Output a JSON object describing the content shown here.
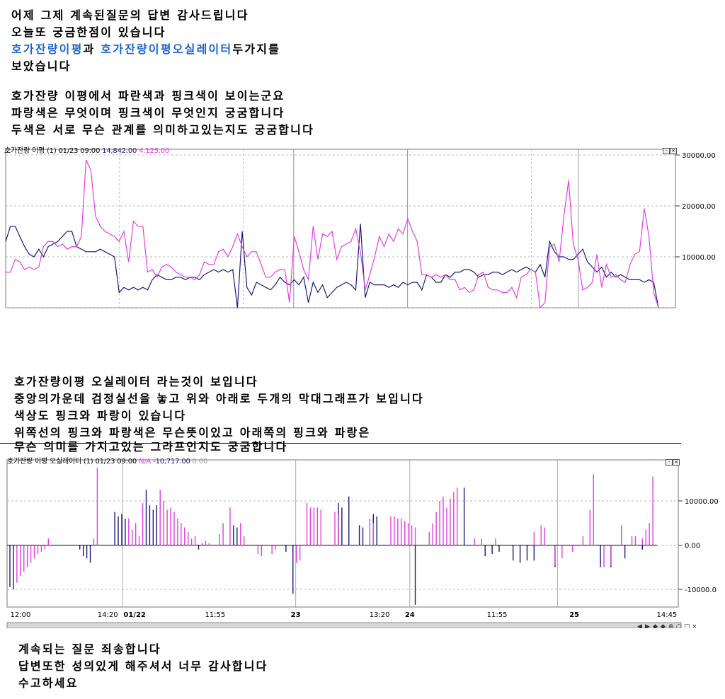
{
  "intro": {
    "line1": "어제 그제 계속된질문의 답변 감사드립니다",
    "line2": "오늘또 궁금한점이 있습니다",
    "line3_link1": "호가잔량이평",
    "line3_mid": "과 ",
    "line3_link2": "호가잔량이평오실레이터",
    "line3_end": "두가지를",
    "line4": "보았습니다",
    "q1": " 호가잔량 이평에서 파란색과 핑크색이 보이는군요",
    "q2": "파랑색은 무엇이며 핑크색이 무엇인지 궁굼합니다",
    "q3": "두색은 서로 무슨 관계를 의미하고있는지도 궁굼합니다"
  },
  "middle": {
    "m1": "호가잔량이평 오실레이터 라는것이 보입니다",
    "m2": "중앙의가운데 검정실선을 놓고 위와 아래로 두개의 막대그래프가 보입니다",
    "m3": "색상도 핑크와 파랑이 있습니다",
    "m4": "위쪽선의 핑크와 파랑색은 무슨뜻이있고 아래쪽의 핑크와 파랑은",
    "m5": "무슨 의미를 가지고있는 그라프인지도 궁굼합니다"
  },
  "outro": {
    "o1": "계속되는 질문 죄송합니다",
    "o2": "답변또한 성의있게 해주셔서 너무 감사합니다",
    "o3": "수고하세요"
  },
  "colors": {
    "blue_series": "#1a1a7a",
    "pink_series": "#e040e0",
    "link_text": "#1a66cc"
  },
  "chart_data": [
    {
      "type": "line",
      "title": "호가잔량 이평 (1) 01/23 09:00",
      "legend_values": [
        "14,842.00",
        "4,125.00"
      ],
      "ylim": [
        0,
        30000
      ],
      "yticks": [
        "30000.00",
        "20000.00",
        "10000.00"
      ],
      "series": [
        {
          "color": "#1a1a7a",
          "values": [
            13000,
            16000,
            16000,
            14000,
            12000,
            10500,
            10000,
            11500,
            10000,
            12000,
            12500,
            13000,
            14000,
            15000,
            15000,
            12000,
            11500,
            11000,
            11000,
            11000,
            11500,
            11000,
            10500,
            10000,
            3000,
            4000,
            3500,
            4000,
            3500,
            4000,
            3500,
            5500,
            6500,
            6000,
            5500,
            5500,
            6000,
            6000,
            5500,
            6000,
            6000,
            5500,
            6500,
            7000,
            7500,
            7000,
            7500,
            7000,
            7500,
            0,
            15000,
            4000,
            2500,
            5000,
            4500,
            4000,
            3500,
            4500,
            6000,
            5000,
            4500,
            5500,
            4500,
            6000,
            1000,
            5000,
            3000,
            4500,
            2000,
            3000,
            4000,
            4500,
            5000,
            4500,
            3500,
            16500,
            2000,
            5000,
            4500,
            4500,
            4500,
            4000,
            4500,
            4000,
            5000,
            4500,
            5000,
            5000,
            3500,
            6500,
            6000,
            5000,
            5000,
            6500,
            6000,
            7000,
            7000,
            7500,
            7500,
            7000,
            6000,
            6500,
            6500,
            7000,
            7000,
            6500,
            7000,
            7500,
            7000,
            7500,
            8000,
            7500,
            7000,
            8500,
            6000,
            13000,
            11000,
            10000,
            10000,
            9500,
            9500,
            10500,
            11500,
            9000,
            8000,
            7000,
            8000,
            6000,
            7000,
            6000,
            6500,
            6000,
            5500,
            5500,
            5500,
            5000,
            5500,
            5000,
            0
          ]
        },
        {
          "color": "#e040e0",
          "values": [
            7000,
            7000,
            9500,
            9000,
            7500,
            8000,
            7500,
            8000,
            12000,
            13000,
            13000,
            12000,
            12500,
            11500,
            12000,
            12000,
            14000,
            29000,
            27000,
            18000,
            16000,
            15000,
            14500,
            14000,
            13000,
            15000,
            9000,
            17000,
            16000,
            16000,
            7000,
            7500,
            6000,
            8000,
            8500,
            8000,
            7000,
            6500,
            6000,
            6000,
            5500,
            6500,
            9000,
            8500,
            8500,
            11000,
            11500,
            10000,
            12000,
            14500,
            12000,
            10000,
            11000,
            11000,
            8500,
            6000,
            6000,
            7000,
            7500,
            7500,
            1000,
            14000,
            11000,
            7500,
            5500,
            16000,
            9500,
            14500,
            14000,
            15000,
            9500,
            12000,
            12500,
            13000,
            15500,
            11000,
            3500,
            6500,
            10000,
            14000,
            12000,
            14500,
            13000,
            15500,
            14500,
            17500,
            15000,
            13000,
            6500,
            6500,
            6000,
            6500,
            6000,
            6500,
            5500,
            5500,
            3500,
            4000,
            3000,
            3500,
            6500,
            7000,
            4000,
            3500,
            3500,
            3000,
            3000,
            4000,
            2000,
            6000,
            6500,
            7500,
            7000,
            0,
            1000,
            12000,
            12500,
            9000,
            18000,
            25000,
            12500,
            9500,
            3500,
            4000,
            5000,
            10500,
            4000,
            8500,
            6000,
            6500,
            5500,
            5000,
            8500,
            10500,
            11000,
            19500,
            14000,
            3000,
            0
          ]
        }
      ]
    },
    {
      "type": "bar",
      "title": "호가잔량 이평 오실레이터 (1) 01/23 09:00",
      "legend_values": [
        "N/A",
        "-10,717.00",
        "0.00"
      ],
      "ylim": [
        -14000,
        18000
      ],
      "yticks": [
        "10000.00",
        "0.00",
        "-10000.0"
      ],
      "xticks": [
        "12:00",
        "14:20",
        "01/22",
        "11:55",
        "23",
        "13:20",
        "24",
        "11:55",
        "25",
        "14:45"
      ],
      "series": [
        {
          "color": "#1a1a7a",
          "values": [
            -9500,
            -10000,
            0,
            0,
            0,
            0,
            0,
            0,
            0,
            0,
            0,
            0,
            0,
            0,
            0,
            0,
            0,
            0,
            0,
            0,
            -1000,
            -2500,
            -3000,
            -4000,
            0,
            0,
            0,
            0,
            0,
            0,
            7500,
            6500,
            7000,
            6000,
            0,
            0,
            0,
            0,
            0,
            12500,
            9000,
            8000,
            9000,
            0,
            0,
            0,
            0,
            0,
            0,
            0,
            0,
            0,
            0,
            0,
            -1000,
            0,
            0,
            0,
            0,
            0,
            0,
            0,
            0,
            0,
            4500,
            4000,
            0,
            0,
            0,
            0,
            0,
            0,
            0,
            0,
            0,
            0,
            0,
            0,
            0,
            -1500,
            0,
            -11000,
            0,
            0,
            0,
            0,
            0,
            0,
            0,
            0,
            0,
            0,
            0,
            0,
            9500,
            8500,
            0,
            11000,
            0,
            0,
            4500,
            4000,
            0,
            0,
            7000,
            6500,
            0,
            0,
            0,
            0,
            0,
            0,
            0,
            0,
            0,
            0,
            -13500,
            0,
            0,
            0,
            0,
            0,
            0,
            0,
            0,
            0,
            0,
            0,
            0,
            0,
            13000,
            0,
            0,
            0,
            0,
            0,
            -2500,
            0,
            -2000,
            0,
            -1500,
            0,
            0,
            0,
            -3500,
            0,
            -4000,
            0,
            -3500,
            0,
            -3500,
            0,
            0,
            0,
            0,
            0,
            -5000,
            0,
            0,
            0,
            0,
            0,
            0,
            0,
            0,
            0,
            0,
            0,
            0,
            -5000,
            0,
            0,
            -5000,
            0,
            0,
            0,
            -3000,
            0,
            0,
            0,
            0,
            -1000,
            0,
            0,
            0,
            0
          ]
        },
        {
          "color": "#e040e0",
          "values": [
            0,
            0,
            -8500,
            -7000,
            -6000,
            -5000,
            -4000,
            -3000,
            -2000,
            -1500,
            -1000,
            1500,
            0,
            0,
            0,
            0,
            0,
            0,
            0,
            0,
            0,
            0,
            0,
            0,
            1500,
            17500,
            0,
            0,
            0,
            0,
            0,
            0,
            0,
            0,
            6000,
            3500,
            5000,
            2000,
            9500,
            0,
            0,
            0,
            0,
            12500,
            10000,
            8000,
            8500,
            7500,
            6000,
            5000,
            4000,
            3000,
            1500,
            2000,
            0,
            500,
            1000,
            500,
            0,
            0,
            2500,
            5000,
            0,
            8500,
            0,
            0,
            5000,
            2000,
            0,
            0,
            0,
            -2000,
            -2500,
            0,
            0,
            -2000,
            -1000,
            0,
            0,
            0,
            0,
            0,
            -4000,
            -3500,
            0,
            9500,
            8500,
            8500,
            8500,
            8000,
            0,
            0,
            0,
            7500,
            7000,
            0,
            0,
            0,
            0,
            0,
            0,
            0,
            0,
            6000,
            5000,
            0,
            0,
            0,
            0,
            6500,
            6500,
            6000,
            6000,
            5500,
            5000,
            4500,
            4000,
            0,
            0,
            0,
            3000,
            5000,
            7500,
            10000,
            11000,
            8500,
            10500,
            12000,
            13000,
            0,
            0,
            0,
            0,
            1500,
            0,
            1500,
            0,
            0,
            0,
            1500,
            0,
            0,
            0,
            0,
            0,
            0,
            0,
            0,
            0,
            0,
            3000,
            0,
            4500,
            4000,
            0,
            0,
            -4500,
            0,
            -3000,
            0,
            0,
            -1500,
            0,
            0,
            2000,
            0,
            8000,
            16000,
            0,
            0,
            -5000,
            0,
            -4500,
            0,
            0,
            4500,
            0,
            0,
            2000,
            2000,
            0,
            1500,
            3500,
            5000,
            15500
          ]
        }
      ]
    }
  ]
}
